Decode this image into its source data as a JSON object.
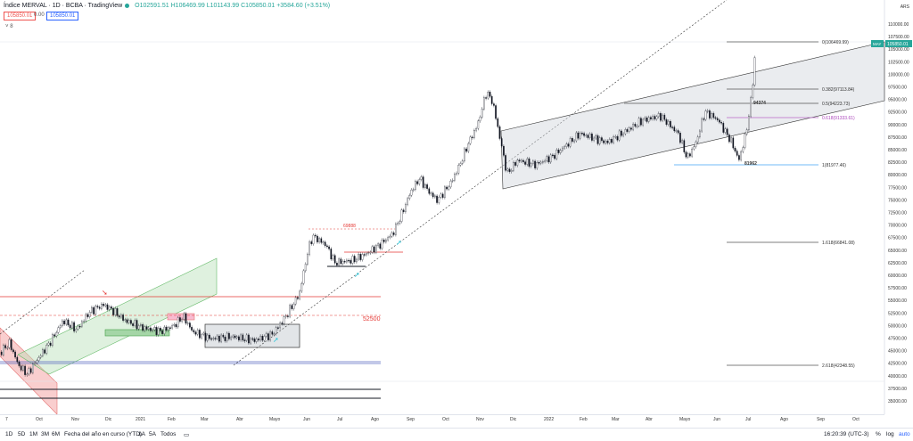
{
  "header": {
    "symbol": "Índice MERVAL · 1D · BCBA · TradingView",
    "ohlc": "O102591.51 H106469.99 L101143.99 C105850.01 +3584.60 (+3.51%)",
    "sell_price": "105850.01",
    "spread": "0.00",
    "buy_price": "105850.01",
    "indicator_count": "8",
    "currency": "ARS"
  },
  "annotations": {
    "fib_0": "0(106469.99)",
    "fib_382": "0.382(97113.84)",
    "fib_5": "0.5(94223.73)",
    "fib_618": "0.618(91333.61)",
    "fib_1": "1(81977.46)",
    "fib_1618": "1.618(66841.08)",
    "fib_2618": "2.618(42348.55)",
    "level_94374": "94374",
    "level_81962": "81962",
    "level_69888": "69888",
    "level_52500": "52500",
    "last_price_badge": "105850.01",
    "last_price_tag": "MAY"
  },
  "y_axis": [
    "110000.00",
    "107500.00",
    "105000.00",
    "102500.00",
    "100000.00",
    "97500.00",
    "95000.00",
    "92500.00",
    "90000.00",
    "87500.00",
    "85000.00",
    "82500.00",
    "80000.00",
    "77500.00",
    "75000.00",
    "72500.00",
    "70000.00",
    "67500.00",
    "65000.00",
    "62500.00",
    "60000.00",
    "57500.00",
    "55000.00",
    "52500.00",
    "50000.00",
    "47500.00",
    "45000.00",
    "42500.00",
    "40000.00",
    "37500.00",
    "35000.00"
  ],
  "x_axis": [
    "7",
    "Oct",
    "Nov",
    "Dic",
    "2021",
    "Feb",
    "Mar",
    "Abr",
    "Mayo",
    "Jun",
    "Jul",
    "Ago",
    "Sep",
    "Oct",
    "Nov",
    "Dic",
    "2022",
    "Feb",
    "Mar",
    "Abr",
    "Mayo",
    "Jun",
    "Jul",
    "Ago",
    "Sep",
    "Oct"
  ],
  "bottombar": {
    "ranges": [
      "1D",
      "5D",
      "1M",
      "3M",
      "6M",
      "Fecha del año en curso (YTD)",
      "1A",
      "5A",
      "Todos"
    ],
    "time": "16:20:39 (UTC-3)",
    "pct": "%",
    "log": "log",
    "auto": "auto"
  }
}
